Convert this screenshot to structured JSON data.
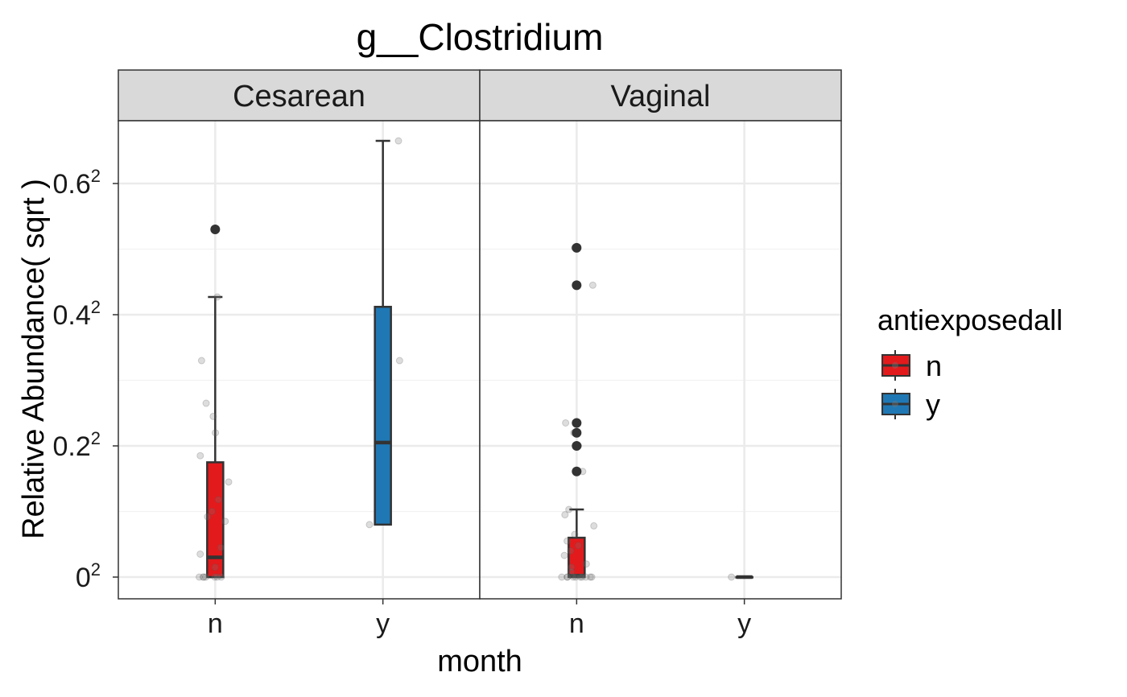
{
  "chart_data": {
    "type": "box",
    "title": "g__Clostridium",
    "xlabel": "month",
    "ylabel": "Relative Abundance( sqrt )",
    "y_scale": "sqrt",
    "ylim": [
      0,
      0.6875
    ],
    "y_ticks": [
      {
        "value": 0,
        "label": "0",
        "sup": "2"
      },
      {
        "value": 0.2,
        "label": "0.2",
        "sup": "2"
      },
      {
        "value": 0.4,
        "label": "0.4",
        "sup": "2"
      },
      {
        "value": 0.6,
        "label": "0.6",
        "sup": "2"
      }
    ],
    "categories": [
      "n",
      "y"
    ],
    "legend": {
      "title": "antiexposedall",
      "position": "right",
      "entries": [
        {
          "key": "n",
          "label": "n",
          "color": "#E31A1C"
        },
        {
          "key": "y",
          "label": "y",
          "color": "#1F78B4"
        }
      ]
    },
    "panels": [
      {
        "name": "Cesarean",
        "boxes": [
          {
            "category": "n",
            "group": "n",
            "q1": 0,
            "median": 0.03,
            "q3": 0.175,
            "whisker_low": 0,
            "whisker_high": 0.427,
            "outliers": [
              0.53
            ],
            "points": [
              0.53,
              0.427,
              0.33,
              0.265,
              0.245,
              0.22,
              0.185,
              0.145,
              0.118,
              0.1,
              0.092,
              0.085,
              0.045,
              0.035,
              0.015,
              0,
              0,
              0,
              0,
              0,
              0,
              0
            ]
          },
          {
            "category": "y",
            "group": "y",
            "q1": 0.08,
            "median": 0.205,
            "q3": 0.412,
            "whisker_low": 0.08,
            "whisker_high": 0.665,
            "outliers": [],
            "points": [
              0.665,
              0.33,
              0.08
            ]
          }
        ]
      },
      {
        "name": "Vaginal",
        "boxes": [
          {
            "category": "n",
            "group": "n",
            "q1": 0,
            "median": 0.002,
            "q3": 0.06,
            "whisker_low": 0,
            "whisker_high": 0.103,
            "outliers": [
              0.502,
              0.445,
              0.235,
              0.22,
              0.2,
              0.161
            ],
            "points": [
              0.502,
              0.445,
              0.235,
              0.22,
              0.2,
              0.161,
              0.103,
              0.095,
              0.078,
              0.065,
              0.055,
              0.048,
              0.04,
              0.033,
              0.02,
              0.015,
              0.008,
              0,
              0,
              0,
              0,
              0,
              0,
              0,
              0,
              0,
              0
            ]
          },
          {
            "category": "y",
            "group": "y",
            "q1": 0,
            "median": 0,
            "q3": 0,
            "whisker_low": 0,
            "whisker_high": 0,
            "outliers": [],
            "points": [
              0
            ]
          }
        ]
      }
    ],
    "grid": true
  }
}
